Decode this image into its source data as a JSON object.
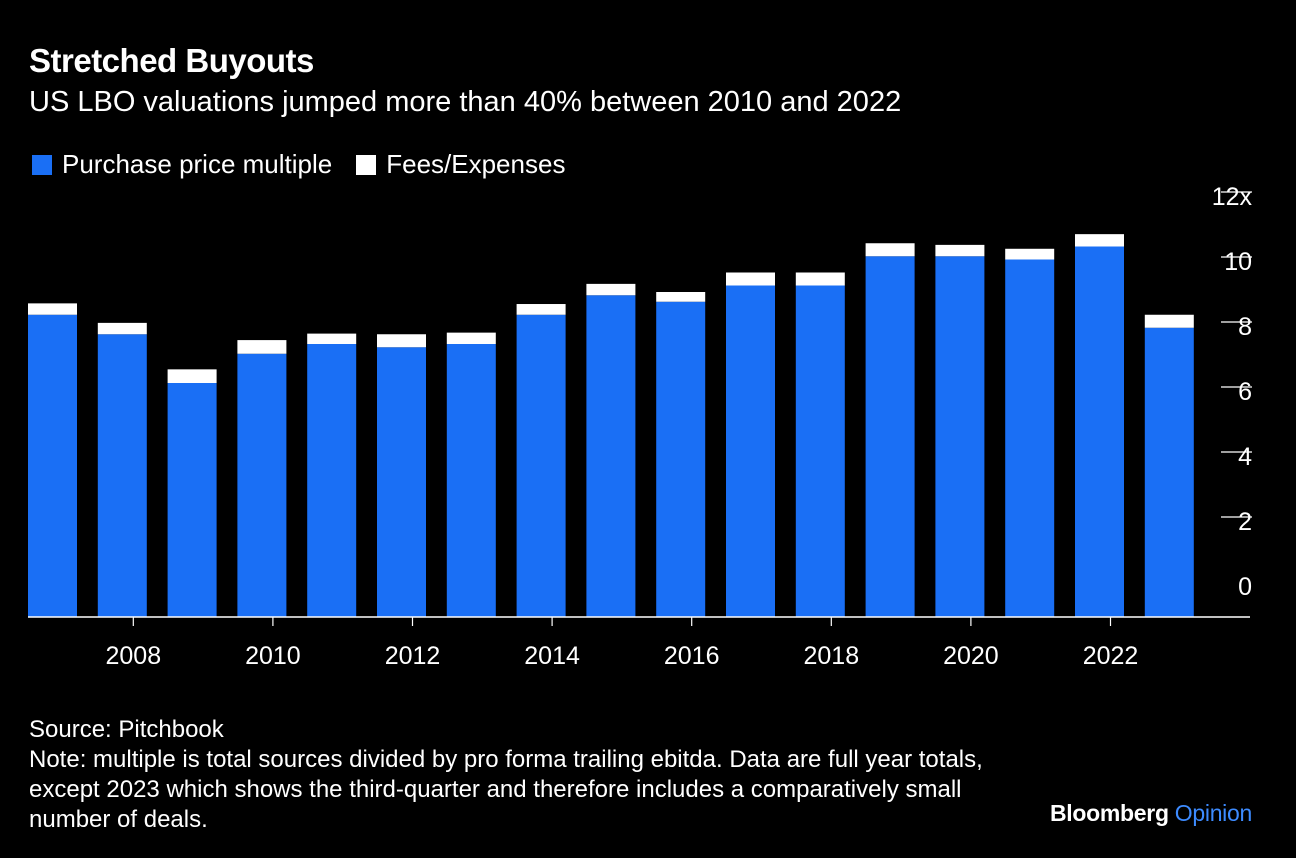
{
  "title": "Stretched Buyouts",
  "subtitle": "US LBO valuations jumped more than 40% between 2010 and 2022",
  "legend": {
    "purchase": "Purchase price multiple",
    "fees": "Fees/Expenses"
  },
  "colors": {
    "purchase": "#1a6ff5",
    "fees": "#ffffff",
    "background": "#000000"
  },
  "chart_data": {
    "type": "bar",
    "stacked": true,
    "categories": [
      "2007",
      "2008",
      "2009",
      "2010",
      "2011",
      "2012",
      "2013",
      "2014",
      "2015",
      "2016",
      "2017",
      "2018",
      "2019",
      "2020",
      "2021",
      "2022",
      "2023"
    ],
    "series": [
      {
        "name": "Purchase price multiple",
        "values": [
          9.3,
          8.7,
          7.2,
          8.1,
          8.4,
          8.3,
          8.4,
          9.3,
          9.9,
          9.7,
          10.2,
          10.2,
          11.1,
          11.1,
          11.0,
          11.4,
          8.9
        ]
      },
      {
        "name": "Fees/Expenses",
        "values": [
          0.35,
          0.35,
          0.42,
          0.42,
          0.32,
          0.4,
          0.35,
          0.33,
          0.35,
          0.3,
          0.4,
          0.4,
          0.4,
          0.35,
          0.33,
          0.38,
          0.4
        ]
      }
    ],
    "xticks": [
      "2008",
      "2010",
      "2012",
      "2014",
      "2016",
      "2018",
      "2020",
      "2022"
    ],
    "yticks": [
      "0",
      "2",
      "4",
      "6",
      "8",
      "10",
      "12x"
    ],
    "ylim": [
      0,
      12
    ],
    "xlabel": "",
    "ylabel": "",
    "legend_position": "top-left",
    "grid": false
  },
  "footer": {
    "source": "Source: Pitchbook",
    "note": "Note: multiple is total sources divided by pro forma trailing ebitda. Data are full year totals, except 2023 which shows the third-quarter and therefore includes a comparatively small number of deals."
  },
  "brand": {
    "name": "Bloomberg",
    "section": "Opinion"
  }
}
